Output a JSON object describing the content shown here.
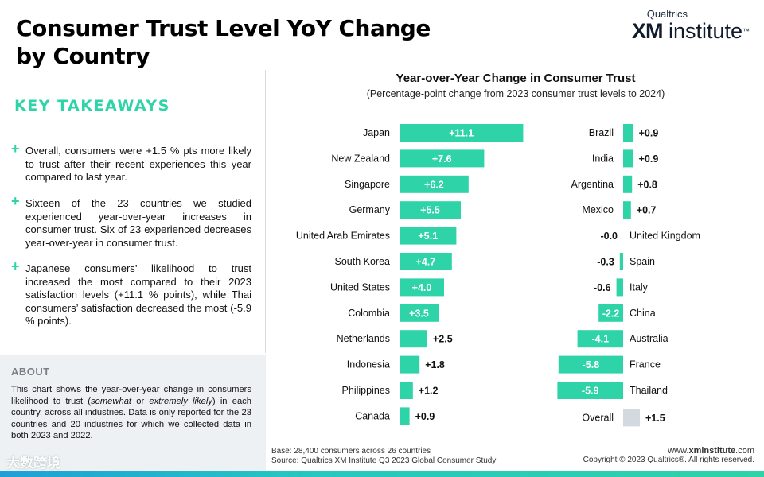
{
  "page": {
    "title_line1": "Consumer Trust Level YoY Change",
    "title_line2": "by Country"
  },
  "logo": {
    "top": "Qualtrics",
    "main_bold": "XM",
    "main_rest": " institute",
    "tm": "™"
  },
  "takeaways": {
    "heading": "KEY TAKEAWAYS",
    "items": [
      "Overall, consumers were +1.5 % pts more likely to trust after their recent experiences this year compared to last year.",
      "Sixteen of the 23 countries we studied experienced year-over-year increases in consumer trust. Six of 23 experienced decreases year-over-year in consumer trust.",
      "Japanese consumers’ likelihood to trust increased the most compared to their 2023 satisfaction levels (+11.1 % points), while Thai consumers’ satisfaction decreased the most (-5.9 % points)."
    ]
  },
  "about": {
    "heading": "ABOUT",
    "text_1": "This chart shows the year-over-year change in consumers likelihood to trust (",
    "emph_1": "somewhat",
    "text_2": " or ",
    "emph_2": "extremely likely",
    "text_3": ") in each country, across all industries. Data is only reported for the 23 countries and 20 industries for which we collected data in both 2023 and 2022."
  },
  "watermark": "大数跨境",
  "chart_data": {
    "type": "bar",
    "orientation": "horizontal",
    "title": "Year-over-Year Change in Consumer Trust",
    "subtitle": "(Percentage-point change from 2023 consumer trust levels to 2024)",
    "unit": "percentage points",
    "colors": {
      "bar": "#2ed3a8",
      "overall": "#d3d9de",
      "positive_label_inside": "#ffffff",
      "label": "#111111"
    },
    "left_panel": {
      "categories": [
        "Japan",
        "New Zealand",
        "Singapore",
        "Germany",
        "United Arab Emirates",
        "South Korea",
        "United States",
        "Colombia",
        "Netherlands",
        "Indonesia",
        "Philippines",
        "Canada"
      ],
      "values": [
        11.1,
        7.6,
        6.2,
        5.5,
        5.1,
        4.7,
        4.0,
        3.5,
        2.5,
        1.8,
        1.2,
        0.9
      ],
      "labels": [
        "+11.1",
        "+7.6",
        "+6.2",
        "+5.5",
        "+5.1",
        "+4.7",
        "+4.0",
        "+3.5",
        "+2.5",
        "+1.8",
        "+1.2",
        "+0.9"
      ]
    },
    "right_panel": {
      "categories": [
        "Brazil",
        "India",
        "Argentina",
        "Mexico",
        "United Kingdom",
        "Spain",
        "Italy",
        "China",
        "Australia",
        "France",
        "Thailand",
        "Overall"
      ],
      "values": [
        0.9,
        0.9,
        0.8,
        0.7,
        -0.0,
        -0.3,
        -0.6,
        -2.2,
        -4.1,
        -5.8,
        -5.9,
        1.5
      ],
      "labels": [
        "+0.9",
        "+0.9",
        "+0.8",
        "+0.7",
        "-0.0",
        "-0.3",
        "-0.6",
        "-2.2",
        "-4.1",
        "-5.8",
        "-5.9",
        "+1.5"
      ]
    }
  },
  "footer": {
    "base": "Base: 28,400 consumers across 26 countries",
    "source": "Source: Qualtrics XM Institute Q3 2023 Global Consumer Study",
    "site_prefix": "www.",
    "site_bold": "xminstitute",
    "site_suffix": ".com",
    "copyright": "Copyright © 2023 Qualtrics®. All rights reserved."
  }
}
